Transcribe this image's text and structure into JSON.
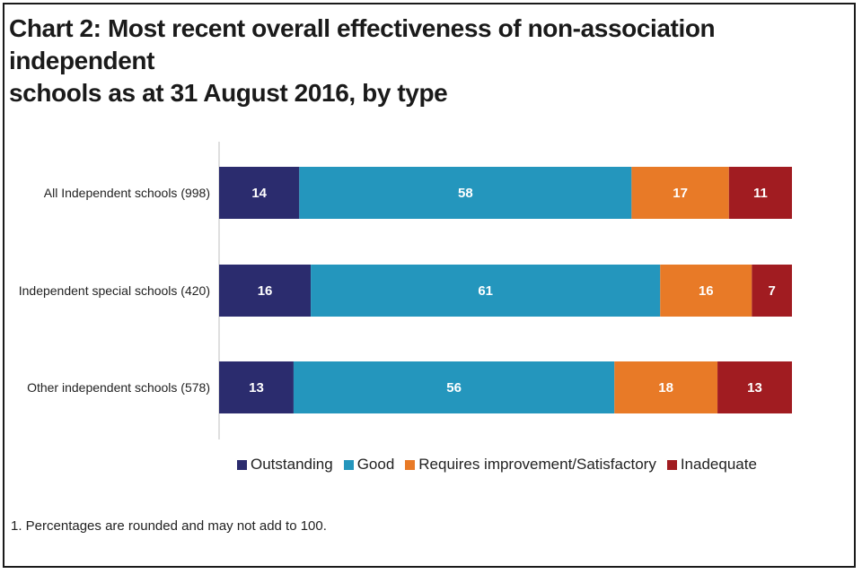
{
  "chart_data": {
    "type": "bar",
    "orientation": "horizontal-stacked",
    "title_line1": "Chart 2: Most recent overall effectiveness of non-association independent",
    "title_line2": "schools as at 31 August 2016, by type",
    "categories": [
      "All Independent schools (998)",
      "Independent special schools (420)",
      "Other independent schools (578)"
    ],
    "series": [
      {
        "name": "Outstanding",
        "color": "#2b2c6e",
        "values": [
          14,
          16,
          13
        ]
      },
      {
        "name": "Good",
        "color": "#2496bd",
        "values": [
          58,
          61,
          56
        ]
      },
      {
        "name": "Requires improvement/Satisfactory",
        "color": "#e87a27",
        "values": [
          17,
          16,
          18
        ]
      },
      {
        "name": "Inadequate",
        "color": "#a11c21",
        "values": [
          11,
          7,
          13
        ]
      }
    ],
    "xlim": [
      0,
      100
    ],
    "legend_position": "bottom",
    "footnote": "1. Percentages are rounded and may not add to 100."
  }
}
